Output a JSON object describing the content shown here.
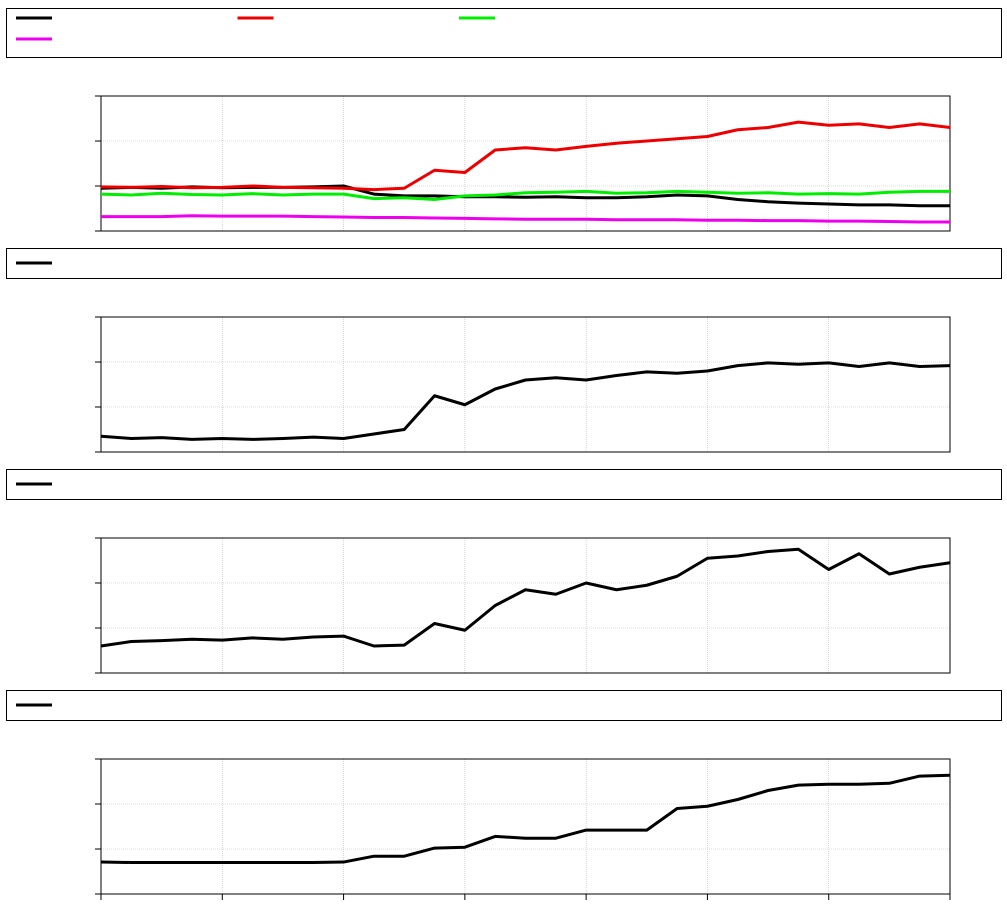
{
  "chart_data": [
    {
      "type": "line",
      "x": [
        0,
        0.25,
        0.5,
        0.75,
        1,
        1.25,
        1.5,
        1.75,
        2,
        2.25,
        2.5,
        2.75,
        3,
        3.25,
        3.5,
        3.75,
        4,
        4.25,
        4.5,
        4.75,
        5,
        5.25,
        5.5,
        5.75,
        6,
        6.25,
        6.5,
        6.75,
        7
      ],
      "xlim": [
        0,
        7
      ],
      "xticks": [
        0,
        1,
        2,
        3,
        4,
        5,
        6,
        7
      ],
      "ylim": [
        0,
        3
      ],
      "yticks": [
        0,
        1,
        2,
        3
      ],
      "grid": true,
      "series": [
        {
          "color": "#000000",
          "values": [
            0.95,
            0.97,
            0.95,
            0.98,
            0.96,
            0.97,
            0.97,
            0.98,
            1.0,
            0.82,
            0.78,
            0.78,
            0.76,
            0.76,
            0.75,
            0.76,
            0.74,
            0.74,
            0.76,
            0.8,
            0.78,
            0.7,
            0.65,
            0.62,
            0.6,
            0.58,
            0.58,
            0.56,
            0.56
          ]
        },
        {
          "color": "#ee0000",
          "values": [
            0.98,
            0.97,
            0.99,
            0.96,
            0.97,
            1.0,
            0.97,
            0.96,
            0.95,
            0.92,
            0.95,
            1.35,
            1.3,
            1.8,
            1.85,
            1.8,
            1.88,
            1.95,
            2.0,
            2.05,
            2.1,
            2.25,
            2.3,
            2.42,
            2.35,
            2.38,
            2.3,
            2.38,
            2.3
          ]
        },
        {
          "color": "#00ee00",
          "values": [
            0.82,
            0.8,
            0.84,
            0.81,
            0.8,
            0.83,
            0.8,
            0.82,
            0.82,
            0.72,
            0.74,
            0.7,
            0.78,
            0.8,
            0.85,
            0.86,
            0.88,
            0.84,
            0.85,
            0.88,
            0.86,
            0.84,
            0.85,
            0.82,
            0.83,
            0.82,
            0.86,
            0.88,
            0.88
          ]
        },
        {
          "color": "#ee00ee",
          "values": [
            0.32,
            0.32,
            0.32,
            0.34,
            0.33,
            0.33,
            0.33,
            0.32,
            0.31,
            0.3,
            0.3,
            0.29,
            0.28,
            0.27,
            0.26,
            0.26,
            0.26,
            0.25,
            0.25,
            0.25,
            0.24,
            0.24,
            0.23,
            0.23,
            0.22,
            0.22,
            0.21,
            0.2,
            0.2
          ]
        }
      ]
    },
    {
      "type": "line",
      "x": [
        0,
        0.25,
        0.5,
        0.75,
        1,
        1.25,
        1.5,
        1.75,
        2,
        2.25,
        2.5,
        2.75,
        3,
        3.25,
        3.5,
        3.75,
        4,
        4.25,
        4.5,
        4.75,
        5,
        5.25,
        5.5,
        5.75,
        6,
        6.25,
        6.5,
        6.75,
        7
      ],
      "xlim": [
        0,
        7
      ],
      "xticks": [
        0,
        1,
        2,
        3,
        4,
        5,
        6,
        7
      ],
      "ylim": [
        0,
        3
      ],
      "yticks": [
        0,
        1,
        2,
        3
      ],
      "grid": true,
      "series": [
        {
          "color": "#000000",
          "values": [
            0.35,
            0.3,
            0.32,
            0.28,
            0.3,
            0.28,
            0.3,
            0.33,
            0.3,
            0.4,
            0.5,
            1.25,
            1.05,
            1.4,
            1.6,
            1.65,
            1.6,
            1.7,
            1.78,
            1.75,
            1.8,
            1.92,
            1.98,
            1.95,
            1.98,
            1.9,
            1.98,
            1.9,
            1.92
          ]
        }
      ]
    },
    {
      "type": "line",
      "x": [
        0,
        0.25,
        0.5,
        0.75,
        1,
        1.25,
        1.5,
        1.75,
        2,
        2.25,
        2.5,
        2.75,
        3,
        3.25,
        3.5,
        3.75,
        4,
        4.25,
        4.5,
        4.75,
        5,
        5.25,
        5.5,
        5.75,
        6,
        6.25,
        6.5,
        6.75,
        7
      ],
      "xlim": [
        0,
        7
      ],
      "xticks": [
        0,
        1,
        2,
        3,
        4,
        5,
        6,
        7
      ],
      "ylim": [
        0,
        3
      ],
      "yticks": [
        0,
        1,
        2,
        3
      ],
      "grid": true,
      "series": [
        {
          "color": "#000000",
          "values": [
            0.6,
            0.7,
            0.72,
            0.75,
            0.73,
            0.78,
            0.75,
            0.8,
            0.82,
            0.6,
            0.62,
            1.1,
            0.95,
            1.5,
            1.85,
            1.75,
            2.0,
            1.85,
            1.95,
            2.15,
            2.55,
            2.6,
            2.7,
            2.75,
            2.3,
            2.65,
            2.2,
            2.35,
            2.45
          ]
        }
      ]
    },
    {
      "type": "line",
      "x": [
        0,
        0.25,
        0.5,
        0.75,
        1,
        1.25,
        1.5,
        1.75,
        2,
        2.25,
        2.5,
        2.75,
        3,
        3.25,
        3.5,
        3.75,
        4,
        4.25,
        4.5,
        4.75,
        5,
        5.25,
        5.5,
        5.75,
        6,
        6.25,
        6.5,
        6.75,
        7
      ],
      "xlim": [
        0,
        7
      ],
      "xticks": [
        0,
        1,
        2,
        3,
        4,
        5,
        6,
        7
      ],
      "ylim": [
        0,
        3
      ],
      "yticks": [
        0,
        1,
        2,
        3
      ],
      "grid": true,
      "series": [
        {
          "color": "#000000",
          "values": [
            0.71,
            0.7,
            0.7,
            0.7,
            0.7,
            0.7,
            0.7,
            0.7,
            0.71,
            0.84,
            0.84,
            1.02,
            1.04,
            1.28,
            1.24,
            1.24,
            1.42,
            1.42,
            1.42,
            1.9,
            1.95,
            2.1,
            2.3,
            2.42,
            2.44,
            2.44,
            2.46,
            2.62,
            2.64
          ]
        }
      ]
    }
  ]
}
